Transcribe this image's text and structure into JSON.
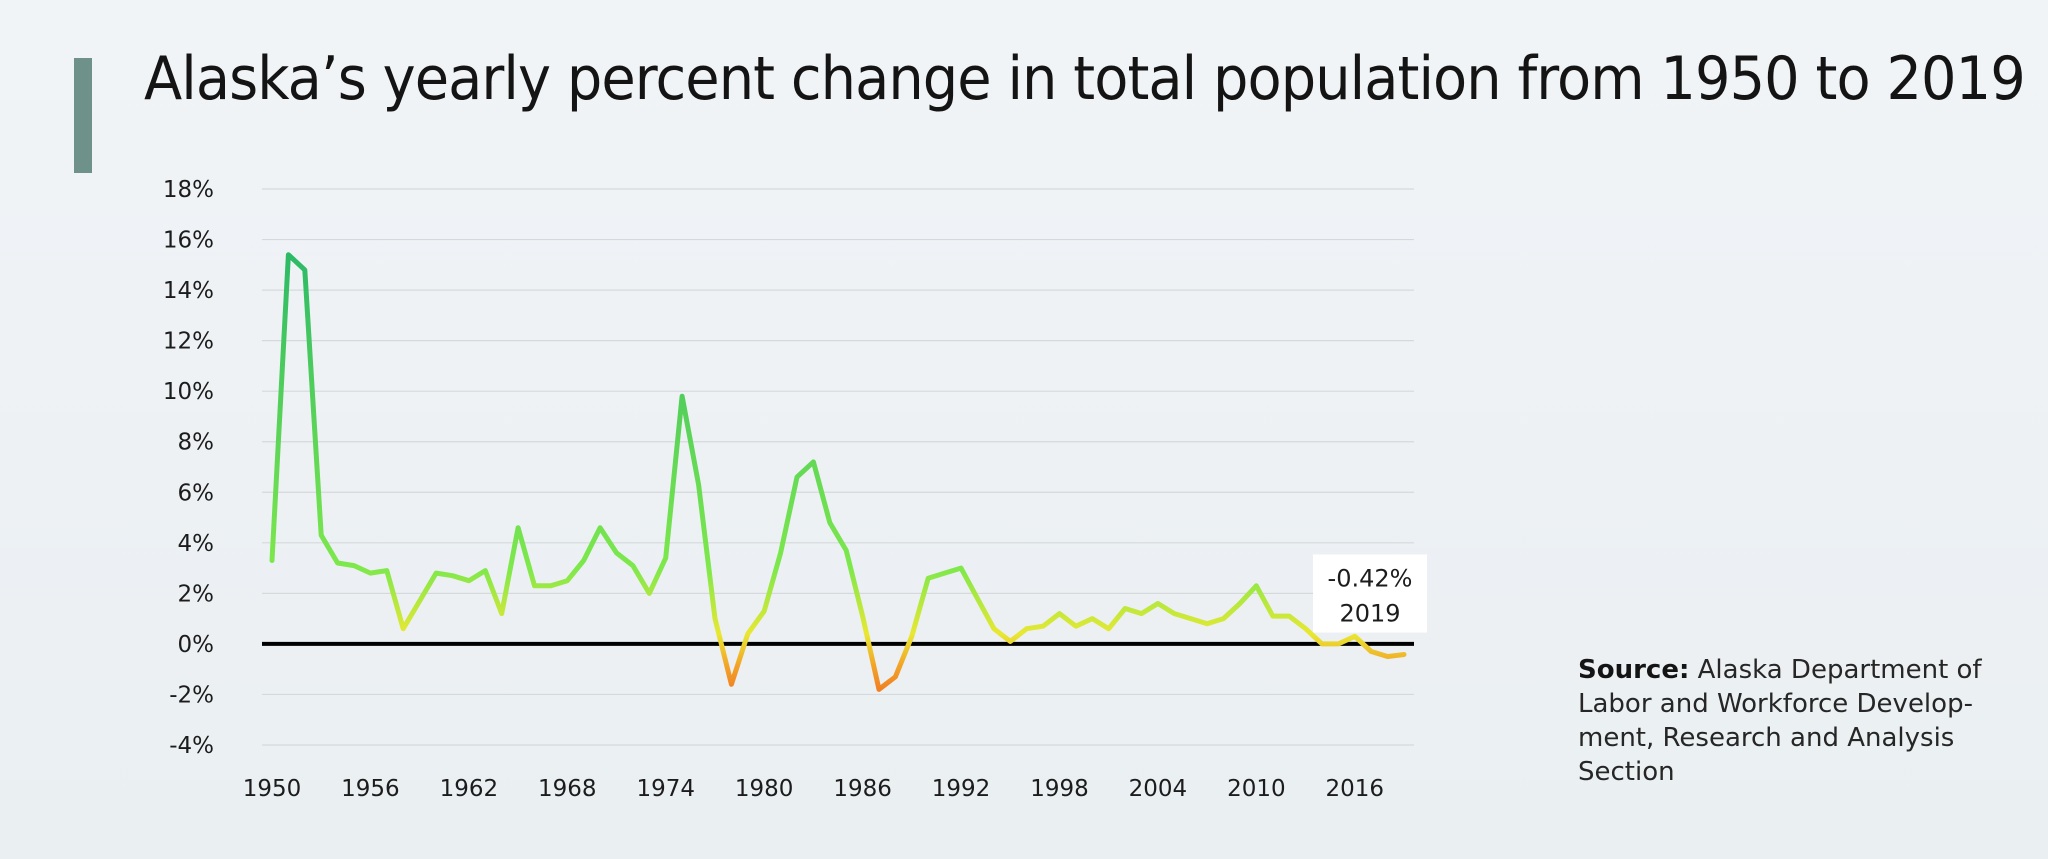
{
  "header": {
    "title": "Alaska’s yearly percent change in total population from 1950 to 2019"
  },
  "colors": {
    "positive_high": "#29b868",
    "positive_mid": "#7ee84c",
    "near_zero": "#e8e832",
    "negative": "#f2a628",
    "negative_low": "#f07a24",
    "zero_line": "#000000",
    "gridline": "#d6d9dc",
    "accent": "#6e918a"
  },
  "chart_data": {
    "type": "line",
    "title": "Alaska’s yearly percent change in total population from 1950 to 2019",
    "xlabel": "",
    "ylabel": "",
    "x": [
      1950,
      1951,
      1952,
      1953,
      1954,
      1955,
      1956,
      1957,
      1958,
      1959,
      1960,
      1961,
      1962,
      1963,
      1964,
      1965,
      1966,
      1967,
      1968,
      1969,
      1970,
      1971,
      1972,
      1973,
      1974,
      1975,
      1976,
      1977,
      1978,
      1979,
      1980,
      1981,
      1982,
      1983,
      1984,
      1985,
      1986,
      1987,
      1988,
      1989,
      1990,
      1991,
      1992,
      1993,
      1994,
      1995,
      1996,
      1997,
      1998,
      1999,
      2000,
      2001,
      2002,
      2003,
      2004,
      2005,
      2006,
      2007,
      2008,
      2009,
      2010,
      2011,
      2012,
      2013,
      2014,
      2015,
      2016,
      2017,
      2018,
      2019
    ],
    "series": [
      {
        "name": "Yearly percent change in total population",
        "values": [
          3.3,
          15.4,
          14.8,
          4.3,
          3.2,
          3.1,
          2.8,
          2.9,
          0.6,
          1.7,
          2.8,
          2.7,
          2.5,
          2.9,
          1.2,
          4.6,
          2.3,
          2.3,
          2.5,
          3.3,
          4.6,
          3.6,
          3.1,
          2.0,
          3.4,
          9.8,
          6.3,
          1.0,
          -1.6,
          0.4,
          1.3,
          3.6,
          6.6,
          7.2,
          4.8,
          3.7,
          1.1,
          -1.8,
          -1.3,
          0.3,
          2.6,
          2.8,
          3.0,
          1.8,
          0.6,
          0.1,
          0.6,
          0.7,
          1.2,
          0.7,
          1.0,
          0.6,
          1.4,
          1.2,
          1.6,
          1.2,
          1.0,
          0.8,
          1.0,
          1.6,
          2.3,
          1.1,
          1.1,
          0.6,
          0.0,
          0.0,
          0.3,
          -0.3,
          -0.5,
          -0.42
        ]
      }
    ],
    "ylim": [
      -4,
      18
    ],
    "xlim": [
      1950,
      2019
    ],
    "y_ticks": [
      -4,
      -2,
      0,
      2,
      4,
      6,
      8,
      10,
      12,
      14,
      16,
      18
    ],
    "y_tick_labels": [
      "-4%",
      "-2%",
      "0%",
      "2%",
      "4%",
      "6%",
      "8%",
      "10%",
      "12%",
      "14%",
      "16%",
      "18%"
    ],
    "x_ticks": [
      1950,
      1956,
      1962,
      1968,
      1974,
      1980,
      1986,
      1992,
      1998,
      2004,
      2010,
      2016
    ],
    "x_tick_labels": [
      "1950",
      "1956",
      "1962",
      "1968",
      "1974",
      "1980",
      "1986",
      "1992",
      "1998",
      "2004",
      "2010",
      "2016"
    ],
    "grid": true,
    "legend": "none",
    "annotation": {
      "x": 2019,
      "y": -0.42,
      "value_label": "-0.42%",
      "year_label": "2019"
    }
  },
  "source": {
    "label": "Source:",
    "text": "Alaska Department of Labor and Workforce Development, Research and Analysis Section",
    "lines": [
      "Alaska Department of",
      "Labor and Workforce Develop-",
      "ment, Research and Analysis",
      "Section"
    ]
  }
}
